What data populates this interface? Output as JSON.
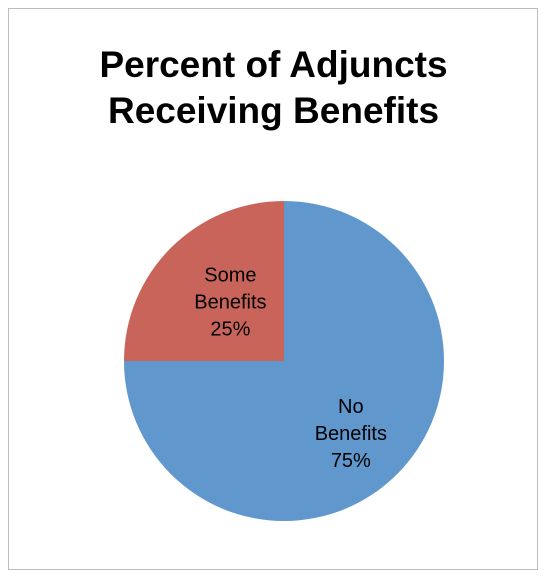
{
  "chart_data": {
    "type": "pie",
    "title_lines": [
      "Percent of Adjuncts",
      "Receiving Benefits"
    ],
    "slices": [
      {
        "label": [
          "No",
          "Benefits",
          "75%"
        ],
        "value": 75,
        "color": "#6097cc"
      },
      {
        "label": [
          "Some",
          "Benefits",
          "25%"
        ],
        "value": 25,
        "color": "#c9645a"
      }
    ],
    "start_angle_deg": 0,
    "direction": "clockwise",
    "legend": "none"
  }
}
